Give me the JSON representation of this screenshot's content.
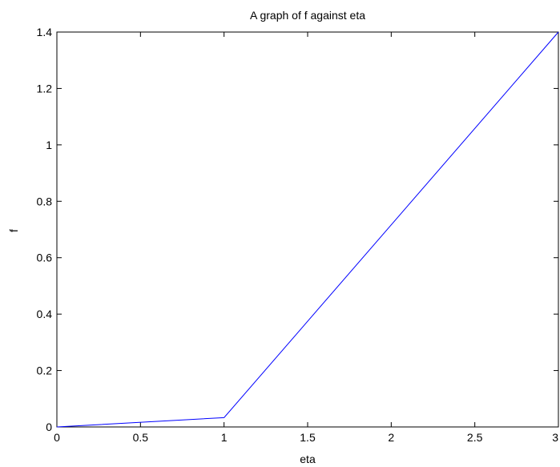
{
  "chart_data": {
    "type": "line",
    "title": "A graph of f against eta",
    "xlabel": "eta",
    "ylabel": "f",
    "xlim": [
      0,
      3
    ],
    "ylim": [
      0,
      1.4
    ],
    "xticks": [
      0,
      0.5,
      1,
      1.5,
      2,
      2.5,
      3
    ],
    "xtick_labels": [
      "0",
      "0.5",
      "1",
      "1.5",
      "2",
      "2.5",
      "3"
    ],
    "yticks": [
      0,
      0.2,
      0.4,
      0.6,
      0.8,
      1,
      1.2,
      1.4
    ],
    "ytick_labels": [
      "0",
      "0.2",
      "0.4",
      "0.6",
      "0.8",
      "1",
      "1.2",
      "1.4"
    ],
    "grid": false,
    "series": [
      {
        "color": "#0000ff",
        "x": [
          0,
          1,
          3
        ],
        "y": [
          0,
          0.033,
          1.4
        ]
      }
    ]
  }
}
